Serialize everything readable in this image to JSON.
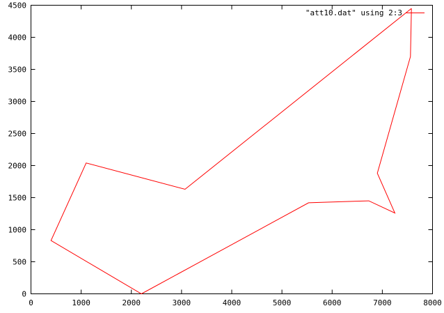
{
  "chart_data": {
    "type": "line",
    "xlim": [
      0,
      8000
    ],
    "ylim": [
      0,
      4500
    ],
    "x_ticks": [
      0,
      1000,
      2000,
      3000,
      4000,
      5000,
      6000,
      7000,
      8000
    ],
    "y_ticks": [
      0,
      500,
      1000,
      1500,
      2000,
      2500,
      3000,
      3500,
      4000,
      4500
    ],
    "grid": false,
    "legend_position": "top-right",
    "series_color": "#ff0000",
    "series": [
      {
        "name": "\"att10.dat\" using 2:3",
        "x": [
          7580,
          7560,
          6900,
          7250,
          6730,
          5530,
          2200,
          400,
          1100,
          3070,
          7580
        ],
        "y": [
          4450,
          3700,
          1880,
          1260,
          1450,
          1420,
          0,
          830,
          2040,
          1630,
          4450
        ]
      }
    ]
  }
}
